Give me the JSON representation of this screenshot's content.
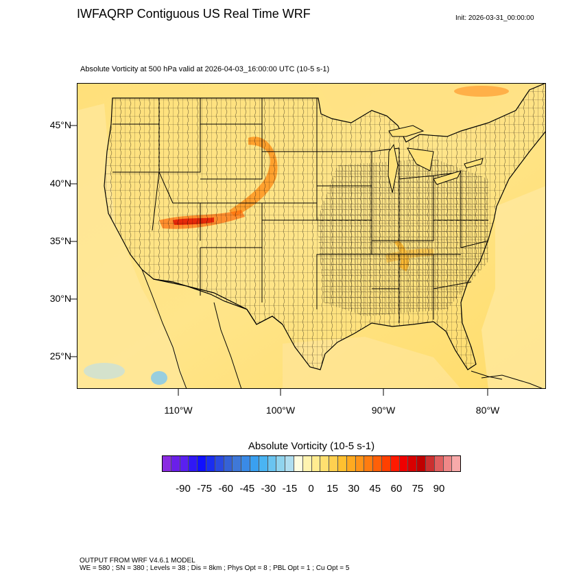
{
  "title": "IWFAQRP Contiguous US Real Time WRF",
  "init": "Init: 2026-03-31_00:00:00",
  "subtitle": "Absolute Vorticity at 500 hPa valid at 2026-04-03_16:00:00 UTC   (10-5 s-1)",
  "lat_labels": [
    "45°N",
    "40°N",
    "35°N",
    "30°N",
    "25°N"
  ],
  "lon_labels": [
    "110°W",
    "100°W",
    "90°W",
    "80°W"
  ],
  "colorbar": {
    "title": "Absolute Vorticity  (10-5 s-1)",
    "ticks": [
      "-90",
      "-75",
      "-60",
      "-45",
      "-30",
      "-15",
      "0",
      "15",
      "30",
      "45",
      "60",
      "75",
      "90"
    ],
    "colors": [
      "#8a2be2",
      "#6a1fe8",
      "#5a20f0",
      "#3018f5",
      "#1010ff",
      "#1a2ef0",
      "#2a4ae0",
      "#3562d6",
      "#3f78d8",
      "#3a8ae6",
      "#3aa0f0",
      "#4ab4f2",
      "#6ac4f0",
      "#90d4ee",
      "#b0def0",
      "#fffde0",
      "#fff4b0",
      "#ffec90",
      "#ffe070",
      "#ffd050",
      "#ffc030",
      "#ffaa20",
      "#ff9418",
      "#ff7c10",
      "#ff6008",
      "#ff4000",
      "#ff1a00",
      "#f00000",
      "#d80000",
      "#c00000",
      "#cc3030",
      "#e06060",
      "#f08888",
      "#f8aaaa"
    ]
  },
  "footer": {
    "line1": "OUTPUT FROM WRF V4.6.1 MODEL",
    "line2": "WE = 580 ; SN = 380 ; Levels = 38 ; Dis = 8km ; Phys Opt = 8 ; PBL Opt = 1 ; Cu Opt = 5"
  },
  "colors": {
    "background_field": "#ffe27a",
    "water_field": "#ffd25a",
    "land_line": "#000000"
  }
}
